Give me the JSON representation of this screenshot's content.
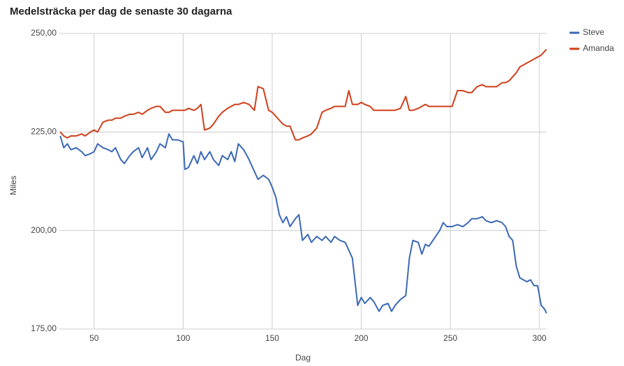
{
  "chart_data": {
    "type": "line",
    "title": "Medelsträcka per dag de senaste 30 dagarna",
    "x_label": "Dag",
    "y_label": "Miles",
    "x": [
      31,
      33,
      35,
      37,
      40,
      43,
      45,
      48,
      50,
      52,
      55,
      58,
      60,
      62,
      65,
      67,
      70,
      72,
      75,
      77,
      80,
      82,
      85,
      87,
      90,
      92,
      94,
      97,
      100,
      101,
      103,
      106,
      108,
      110,
      112,
      115,
      117,
      120,
      122,
      125,
      127,
      129,
      131,
      134,
      137,
      140,
      142,
      145,
      148,
      150,
      152,
      154,
      156,
      158,
      160,
      163,
      165,
      167,
      170,
      172,
      175,
      178,
      180,
      183,
      185,
      188,
      191,
      193,
      195,
      197,
      198,
      200,
      202,
      205,
      207,
      210,
      212,
      215,
      217,
      219,
      222,
      225,
      227,
      229,
      232,
      234,
      236,
      238,
      241,
      244,
      246,
      248,
      251,
      254,
      257,
      260,
      262,
      265,
      268,
      270,
      273,
      276,
      279,
      281,
      283,
      285,
      287,
      289,
      291,
      293,
      295,
      297,
      299,
      301,
      303,
      304
    ],
    "series": [
      {
        "name": "Steve",
        "color": "#3b68b5",
        "values": [
          224,
          221,
          222,
          220.5,
          221,
          220,
          219,
          219.5,
          220,
          222,
          221,
          220.5,
          220,
          221,
          218,
          217,
          219,
          220,
          221,
          218.5,
          221,
          218,
          220,
          222,
          221,
          224.5,
          223,
          223,
          222.5,
          215.5,
          216,
          219,
          217,
          220,
          218,
          220,
          218,
          216.5,
          219,
          218,
          220,
          217.5,
          222,
          220.5,
          218,
          215,
          213,
          214,
          213,
          211,
          208.5,
          204,
          202,
          203.5,
          201,
          203,
          204,
          197.5,
          199,
          197,
          198.5,
          197.5,
          198.5,
          197,
          198.5,
          197.5,
          197,
          195,
          193,
          185,
          181,
          183,
          181.5,
          183,
          182,
          179.5,
          181,
          181.5,
          179.5,
          181,
          182.5,
          183.5,
          193,
          197.5,
          197,
          194,
          196.5,
          196,
          198,
          200,
          202,
          201,
          201,
          201.5,
          201,
          202,
          203,
          203,
          203.5,
          202.5,
          202,
          202.5,
          202,
          201,
          198.5,
          197.5,
          191,
          188,
          187.5,
          187,
          187.5,
          186,
          186,
          181,
          180,
          179
        ]
      },
      {
        "name": "Amanda",
        "color": "#cf3f1a",
        "values": [
          225,
          224,
          223.5,
          224,
          224,
          224.5,
          224,
          225,
          225.5,
          225,
          227.5,
          228,
          228,
          228.5,
          228.5,
          229,
          229.5,
          229.5,
          230,
          229.5,
          230.5,
          231,
          231.5,
          231.5,
          230,
          230,
          230.5,
          230.5,
          230.5,
          230.5,
          231,
          230.5,
          231,
          232,
          225.5,
          226,
          227,
          229,
          230,
          231,
          231.5,
          232,
          232,
          232.5,
          232,
          230.5,
          236.5,
          236,
          230.5,
          230,
          229,
          228,
          227,
          226.5,
          226.5,
          223,
          223,
          223.5,
          224,
          224.5,
          226,
          230,
          230.5,
          231,
          231.5,
          231.5,
          231.5,
          235.5,
          232,
          232,
          232,
          232.5,
          232,
          231.5,
          230.5,
          230.5,
          230.5,
          230.5,
          230.5,
          230.5,
          231,
          234,
          230.5,
          230.5,
          231,
          231.5,
          232,
          231.5,
          231.5,
          231.5,
          231.5,
          231.5,
          231.5,
          235.5,
          235.5,
          235,
          235,
          236.5,
          237,
          236.5,
          236.5,
          236.5,
          237.5,
          237.5,
          238,
          239,
          240,
          241.5,
          242,
          242.5,
          243,
          243.5,
          244,
          244.5,
          245.5,
          246
        ]
      }
    ],
    "xlim": [
      30.5,
      304
    ],
    "xticks": [
      50,
      100,
      150,
      200,
      250,
      300
    ],
    "ylim": [
      175,
      250
    ],
    "yticks": [
      {
        "value": 175,
        "label": "175,00"
      },
      {
        "value": 200,
        "label": "200,00"
      },
      {
        "value": 225,
        "label": "225,00"
      },
      {
        "value": 250,
        "label": "250,00"
      }
    ],
    "grid": true,
    "legend": "right"
  }
}
